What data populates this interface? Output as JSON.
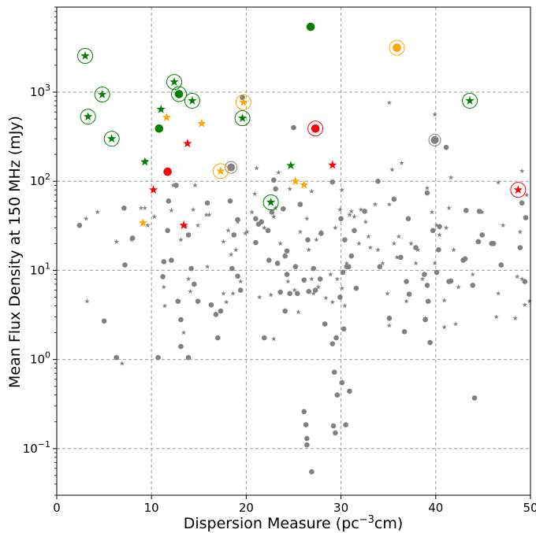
{
  "chart_data": {
    "type": "scatter",
    "xlabel": "Dispersion Measure (pc",
    "xlabel_sup": "−3",
    "xlabel_end": "cm)",
    "ylabel": "Mean Flux Density at 150 MHz (mJy)",
    "xlim": [
      0,
      50
    ],
    "ylim": [
      0.03,
      9000
    ],
    "yscale": "log",
    "grid": true,
    "x_ticks": [
      0,
      10,
      20,
      30,
      40,
      50
    ],
    "x_tick_labels": [
      "0",
      "10",
      "20",
      "30",
      "40",
      "50"
    ],
    "y_ticks": [
      0.1,
      1,
      10,
      100,
      1000
    ],
    "y_tick_labels": [
      {
        "base": "10",
        "exp": "−1"
      },
      {
        "base": "10",
        "exp": "0"
      },
      {
        "base": "10",
        "exp": "1"
      },
      {
        "base": "10",
        "exp": "2"
      },
      {
        "base": "10",
        "exp": "3"
      }
    ],
    "colors": {
      "grey": "#808080",
      "green": "#008000",
      "orange": "#ffa500",
      "red": "#ff0000"
    },
    "series": [
      {
        "color": "grey",
        "marker": "circle",
        "points": [
          [
            2.4,
            32
          ],
          [
            5,
            2.7
          ],
          [
            6.3,
            1.05
          ],
          [
            7.1,
            50
          ],
          [
            7.2,
            11.5
          ],
          [
            8,
            23
          ],
          [
            10.7,
            1.05
          ],
          [
            11.2,
            8.5
          ],
          [
            11.3,
            12.5
          ],
          [
            11.7,
            28
          ],
          [
            11.8,
            60
          ],
          [
            12.1,
            13
          ],
          [
            12.6,
            90
          ],
          [
            12.8,
            4.5
          ],
          [
            13.1,
            2.8
          ],
          [
            13.1,
            1.4
          ],
          [
            13.9,
            1.05
          ],
          [
            13.9,
            25
          ],
          [
            14.2,
            10.5
          ],
          [
            14.5,
            7
          ],
          [
            14.9,
            4.5
          ],
          [
            15.9,
            57
          ],
          [
            16.3,
            4.1
          ],
          [
            16.8,
            3.2
          ],
          [
            17,
            1.75
          ],
          [
            17.3,
            3.5
          ],
          [
            18.3,
            60
          ],
          [
            18.5,
            10.5
          ],
          [
            18.7,
            25
          ],
          [
            19.1,
            37
          ],
          [
            19.1,
            8.6
          ],
          [
            19.4,
            6
          ],
          [
            19.6,
            870
          ],
          [
            21,
            38
          ],
          [
            21,
            20.5
          ],
          [
            21.3,
            33
          ],
          [
            21.6,
            35
          ],
          [
            21.9,
            1.75
          ],
          [
            22.3,
            28
          ],
          [
            22.4,
            13
          ],
          [
            22.7,
            45
          ],
          [
            22.9,
            103
          ],
          [
            23.1,
            82
          ],
          [
            23.3,
            12
          ],
          [
            23.6,
            5.7
          ],
          [
            23.9,
            49
          ],
          [
            24.1,
            14.5
          ],
          [
            24.1,
            3.5
          ],
          [
            24.3,
            9
          ],
          [
            24.3,
            16.5
          ],
          [
            24.6,
            5.5
          ],
          [
            25,
            400
          ],
          [
            25.2,
            11
          ],
          [
            25.4,
            5.5
          ],
          [
            25.7,
            55
          ],
          [
            26.1,
            7.8
          ],
          [
            26.1,
            0.26
          ],
          [
            26.3,
            0.185
          ],
          [
            26.4,
            0.13
          ],
          [
            26.4,
            0.11
          ],
          [
            26.5,
            22
          ],
          [
            26.6,
            5.8
          ],
          [
            26.9,
            0.055
          ],
          [
            27.1,
            10.5
          ],
          [
            27.3,
            6
          ],
          [
            27.8,
            8
          ],
          [
            27.9,
            26
          ],
          [
            28.3,
            2.5
          ],
          [
            29.1,
            1.5
          ],
          [
            29.1,
            98
          ],
          [
            29.2,
            0.18
          ],
          [
            29.3,
            0.72
          ],
          [
            29.4,
            0.15
          ],
          [
            29.5,
            1.75
          ],
          [
            29.6,
            0.4
          ],
          [
            29.9,
            5
          ],
          [
            30,
            38
          ],
          [
            30.1,
            0.55
          ],
          [
            30.2,
            9.5
          ],
          [
            30.3,
            2.2
          ],
          [
            30.4,
            22
          ],
          [
            30.5,
            0.185
          ],
          [
            30.6,
            11
          ],
          [
            30.8,
            11
          ],
          [
            30.9,
            0.44
          ],
          [
            31.1,
            14.5
          ],
          [
            31.4,
            28
          ],
          [
            31.6,
            6.3
          ],
          [
            32.5,
            46
          ],
          [
            33.9,
            100
          ],
          [
            34.1,
            11
          ],
          [
            35.1,
            2.9
          ],
          [
            35.6,
            63
          ],
          [
            36.3,
            14
          ],
          [
            36.7,
            2.05
          ],
          [
            36.9,
            7.5
          ],
          [
            37.1,
            38
          ],
          [
            37.2,
            5.4
          ],
          [
            37.9,
            18
          ],
          [
            38.8,
            9
          ],
          [
            38.9,
            2.8
          ],
          [
            39.1,
            6.8
          ],
          [
            39.2,
            4.5
          ],
          [
            39.4,
            1.55
          ],
          [
            39.7,
            28
          ],
          [
            40.1,
            9.5
          ],
          [
            40.3,
            17
          ],
          [
            40.4,
            31
          ],
          [
            41.1,
            240
          ],
          [
            41.4,
            7.5
          ],
          [
            41.6,
            7.6
          ],
          [
            42.9,
            13
          ],
          [
            43.1,
            13.5
          ],
          [
            43.2,
            47
          ],
          [
            43.9,
            6.8
          ],
          [
            44.1,
            0.37
          ],
          [
            44.5,
            21
          ],
          [
            44.6,
            46
          ],
          [
            44.9,
            25
          ],
          [
            45.9,
            20
          ],
          [
            46.1,
            20
          ],
          [
            46.9,
            11.5
          ],
          [
            48.9,
            18
          ],
          [
            49.1,
            57
          ],
          [
            49.4,
            7.5
          ],
          [
            49.5,
            39
          ],
          [
            39.1,
            74
          ]
        ]
      },
      {
        "color": "grey",
        "marker": "star",
        "points": [
          [
            3.1,
            38
          ],
          [
            3.2,
            4.5
          ],
          [
            4.3,
            45
          ],
          [
            6.3,
            21
          ],
          [
            6.9,
            0.9
          ],
          [
            7.9,
            22
          ],
          [
            8.9,
            50
          ],
          [
            9.3,
            50
          ],
          [
            9.4,
            170
          ],
          [
            9.6,
            32
          ],
          [
            10.3,
            40
          ],
          [
            11.3,
            6.5
          ],
          [
            11.4,
            4
          ],
          [
            12.1,
            47
          ],
          [
            12.3,
            90
          ],
          [
            13.1,
            22
          ],
          [
            13.4,
            2
          ],
          [
            13.6,
            31
          ],
          [
            13.9,
            8
          ],
          [
            14.1,
            5.8
          ],
          [
            14.4,
            48
          ],
          [
            14.6,
            90
          ],
          [
            14.9,
            32
          ],
          [
            15.8,
            42
          ],
          [
            15.9,
            11
          ],
          [
            16.1,
            42
          ],
          [
            17.6,
            5.5
          ],
          [
            17.6,
            21
          ],
          [
            17.9,
            4.4
          ],
          [
            18.1,
            28
          ],
          [
            18.4,
            15
          ],
          [
            18.6,
            5.5
          ],
          [
            18.9,
            17
          ],
          [
            19.1,
            35
          ],
          [
            19.4,
            7.5
          ],
          [
            19.9,
            26
          ],
          [
            20.1,
            27
          ],
          [
            20.6,
            45
          ],
          [
            20.9,
            72
          ],
          [
            21.1,
            140
          ],
          [
            21.4,
            5
          ],
          [
            21.9,
            30
          ],
          [
            22.6,
            5.3
          ],
          [
            22.9,
            1.7
          ],
          [
            22.9,
            40
          ],
          [
            23.1,
            50
          ],
          [
            23.4,
            125
          ],
          [
            23.6,
            20
          ],
          [
            24.4,
            7.5
          ],
          [
            24.6,
            82
          ],
          [
            25.1,
            6
          ],
          [
            25.5,
            3.4
          ],
          [
            25.7,
            27
          ],
          [
            26.4,
            38
          ],
          [
            26.6,
            17
          ],
          [
            26.9,
            77
          ],
          [
            26.9,
            8
          ],
          [
            27.1,
            5.5
          ],
          [
            27.4,
            22
          ],
          [
            27.6,
            6.5
          ],
          [
            27.9,
            27
          ],
          [
            28.4,
            4.9
          ],
          [
            28.9,
            9
          ],
          [
            29.1,
            4.4
          ],
          [
            29.4,
            30
          ],
          [
            29.6,
            8
          ],
          [
            29.9,
            48
          ],
          [
            30.1,
            6.3
          ],
          [
            30.4,
            4
          ],
          [
            30.6,
            12
          ],
          [
            30.9,
            42
          ],
          [
            31.1,
            46
          ],
          [
            31.4,
            40
          ],
          [
            31.9,
            20
          ],
          [
            32.1,
            48
          ],
          [
            32.6,
            35
          ],
          [
            32.9,
            24
          ],
          [
            33.1,
            18
          ],
          [
            33.6,
            55
          ],
          [
            33.9,
            17
          ],
          [
            34.4,
            12
          ],
          [
            34.9,
            5.5
          ],
          [
            35.1,
            2.4
          ],
          [
            35.1,
            55
          ],
          [
            35.1,
            760
          ],
          [
            35.4,
            135
          ],
          [
            35.6,
            20
          ],
          [
            35.9,
            14
          ],
          [
            36.1,
            24
          ],
          [
            36.4,
            160
          ],
          [
            36.9,
            4.5
          ],
          [
            37.4,
            20
          ],
          [
            37.9,
            12
          ],
          [
            38.1,
            17
          ],
          [
            38.6,
            8
          ],
          [
            38.9,
            2.9
          ],
          [
            39.1,
            84
          ],
          [
            39.6,
            45
          ],
          [
            39.9,
            560
          ],
          [
            39.9,
            12
          ],
          [
            40.1,
            32
          ],
          [
            40.4,
            25
          ],
          [
            40.9,
            4.6
          ],
          [
            40.9,
            2.3
          ],
          [
            41.1,
            30
          ],
          [
            41.4,
            50
          ],
          [
            41.6,
            110
          ],
          [
            41.9,
            17
          ],
          [
            42.1,
            2.5
          ],
          [
            42.4,
            6.5
          ],
          [
            43.9,
            9
          ],
          [
            44.4,
            21
          ],
          [
            44.9,
            45
          ],
          [
            46.4,
            3
          ],
          [
            46.6,
            5.5
          ],
          [
            46.6,
            97
          ],
          [
            47.1,
            32
          ],
          [
            48.4,
            2.9
          ],
          [
            48.6,
            8.5
          ],
          [
            48.9,
            27
          ],
          [
            49.1,
            8
          ],
          [
            49.1,
            130
          ],
          [
            49.4,
            4.1
          ],
          [
            49.6,
            70
          ],
          [
            49.9,
            4.5
          ],
          [
            30.1,
            80
          ]
        ]
      },
      {
        "color": "grey",
        "marker": "circle",
        "ringed": true,
        "points": [
          [
            18.4,
            143
          ],
          [
            39.9,
            290
          ]
        ]
      },
      {
        "color": "green",
        "marker": "circle",
        "points": [
          [
            10.8,
            390
          ],
          [
            26.8,
            5400
          ]
        ]
      },
      {
        "color": "green",
        "marker": "circle",
        "ringed": true,
        "points": [
          [
            12.9,
            950
          ]
        ]
      },
      {
        "color": "green",
        "marker": "star",
        "points": [
          [
            9.3,
            165
          ],
          [
            11,
            640
          ],
          [
            24.7,
            150
          ]
        ]
      },
      {
        "color": "green",
        "marker": "star",
        "ringed": true,
        "points": [
          [
            3,
            2550
          ],
          [
            3.3,
            530
          ],
          [
            4.8,
            940
          ],
          [
            5.8,
            300
          ],
          [
            12.4,
            1300
          ],
          [
            14.3,
            800
          ],
          [
            19.6,
            510
          ],
          [
            22.6,
            58
          ],
          [
            43.6,
            800
          ]
        ]
      },
      {
        "color": "orange",
        "marker": "circle",
        "ringed": true,
        "points": [
          [
            35.9,
            3150
          ]
        ]
      },
      {
        "color": "orange",
        "marker": "star",
        "points": [
          [
            9.1,
            34
          ],
          [
            11.6,
            520
          ],
          [
            15.3,
            445
          ],
          [
            25.2,
            100
          ],
          [
            26.1,
            91
          ]
        ]
      },
      {
        "color": "orange",
        "marker": "star",
        "ringed": true,
        "points": [
          [
            17.3,
            130
          ],
          [
            19.7,
            770
          ]
        ]
      },
      {
        "color": "red",
        "marker": "circle",
        "points": [
          [
            11.7,
            128
          ]
        ]
      },
      {
        "color": "red",
        "marker": "circle",
        "ringed": true,
        "points": [
          [
            27.3,
            390
          ]
        ]
      },
      {
        "color": "red",
        "marker": "star",
        "points": [
          [
            10.2,
            80
          ],
          [
            13.4,
            32
          ],
          [
            13.8,
            265
          ],
          [
            29.1,
            152
          ]
        ]
      },
      {
        "color": "red",
        "marker": "star",
        "ringed": true,
        "points": [
          [
            48.7,
            80
          ]
        ]
      }
    ]
  }
}
